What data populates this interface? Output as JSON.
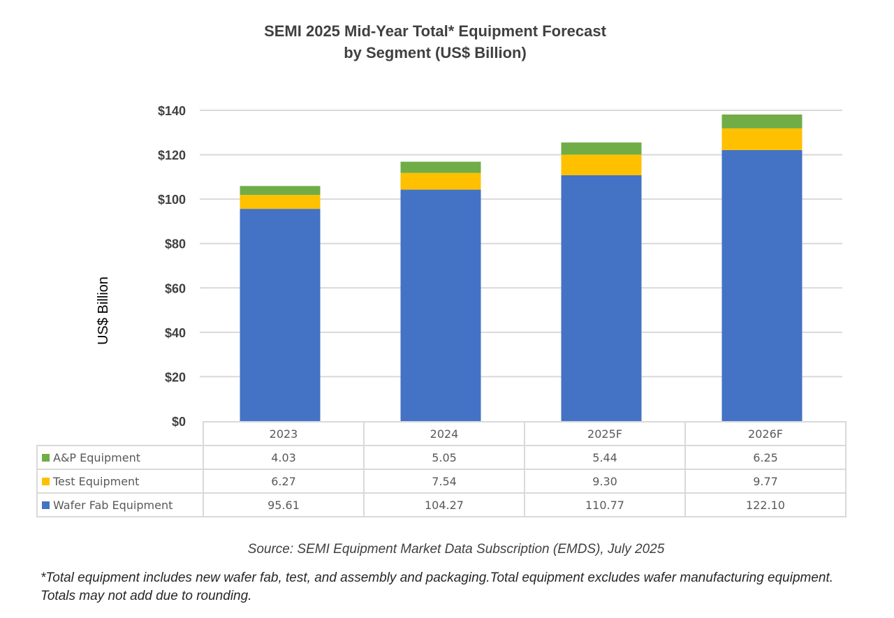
{
  "chart_data": {
    "type": "bar",
    "stacked": true,
    "title_line1": "SEMI 2025 Mid-Year Total* Equipment Forecast",
    "title_line2": "by Segment (US$ Billion)",
    "xlabel": "",
    "ylabel": "US$ Billion",
    "ylim": [
      0,
      140
    ],
    "yticks": [
      0,
      20,
      40,
      60,
      80,
      100,
      120,
      140
    ],
    "ytick_labels": [
      "$0",
      "$20",
      "$40",
      "$60",
      "$80",
      "$100",
      "$120",
      "$140"
    ],
    "grid": true,
    "legend": "data-table",
    "categories": [
      "2023",
      "2024",
      "2025F",
      "2026F"
    ],
    "series": [
      {
        "name": "Wafer Fab Equipment",
        "color": "#4472c4",
        "values": [
          95.61,
          104.27,
          110.77,
          122.1
        ]
      },
      {
        "name": "Test Equipment",
        "color": "#ffc000",
        "values": [
          6.27,
          7.54,
          9.3,
          9.77
        ]
      },
      {
        "name": "A&P Equipment",
        "color": "#70ad47",
        "values": [
          4.03,
          5.05,
          5.44,
          6.25
        ]
      }
    ],
    "table_rows": [
      {
        "name": "A&P Equipment",
        "color": "#70ad47",
        "values": [
          "4.03",
          "5.05",
          "5.44",
          "6.25"
        ]
      },
      {
        "name": "Test Equipment",
        "color": "#ffc000",
        "values": [
          "6.27",
          "7.54",
          "9.30",
          "9.77"
        ]
      },
      {
        "name": "Wafer Fab Equipment",
        "color": "#4472c4",
        "values": [
          "95.61",
          "104.27",
          "110.77",
          "122.10"
        ]
      }
    ]
  },
  "source": "Source: SEMI Equipment Market Data Subscription (EMDS), July 2025",
  "footnote": "*Total equipment includes new wafer fab, test, and assembly and packaging.Total equipment excludes wafer manufacturing equipment. Totals may not add due to rounding."
}
